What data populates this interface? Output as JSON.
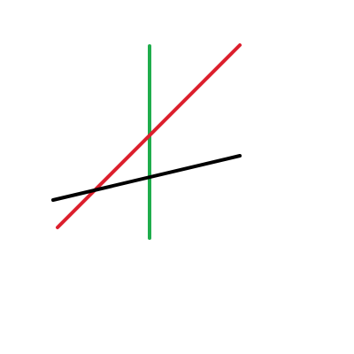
{
  "lines": [
    {
      "name": "green-line",
      "color": "#1fad4c"
    },
    {
      "name": "red-line",
      "color": "#dc1f2d"
    },
    {
      "name": "black-line",
      "color": "#000000"
    }
  ],
  "background": "#ffffff"
}
